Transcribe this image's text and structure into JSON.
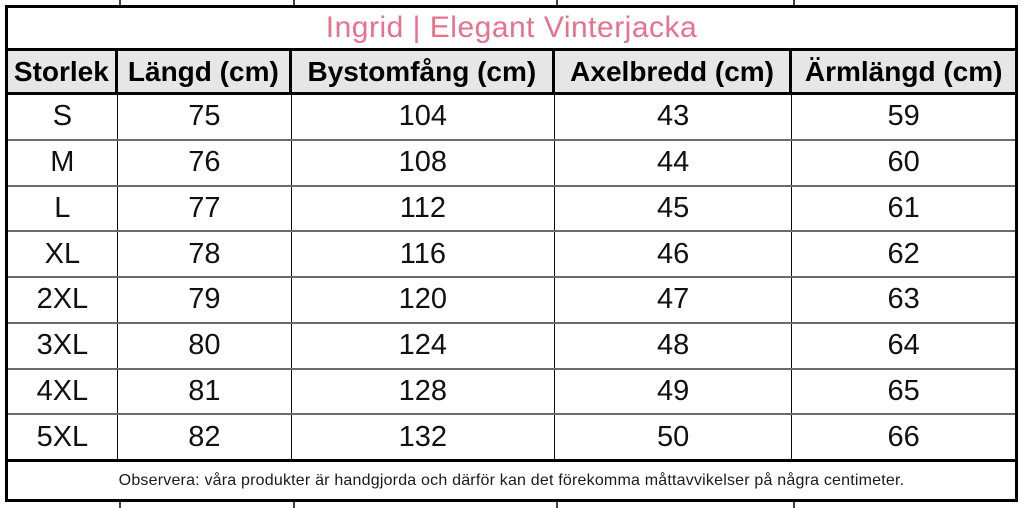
{
  "chart_data": {
    "type": "table",
    "title": "Ingrid | Elegant Vinterjacka",
    "columns": [
      "Storlek",
      "Längd (cm)",
      "Bystomfång (cm)",
      "Axelbredd (cm)",
      "Ärmlängd (cm)"
    ],
    "rows": [
      [
        "S",
        "75",
        "104",
        "43",
        "59"
      ],
      [
        "M",
        "76",
        "108",
        "44",
        "60"
      ],
      [
        "L",
        "77",
        "112",
        "45",
        "61"
      ],
      [
        "XL",
        "78",
        "116",
        "46",
        "62"
      ],
      [
        "2XL",
        "79",
        "120",
        "47",
        "63"
      ],
      [
        "3XL",
        "80",
        "124",
        "48",
        "64"
      ],
      [
        "4XL",
        "81",
        "128",
        "49",
        "65"
      ],
      [
        "5XL",
        "82",
        "132",
        "50",
        "66"
      ]
    ],
    "note": "Observera: våra produkter är handgjorda och därför kan det förekomma måttavvikelser på några centimeter.",
    "layout": {
      "header_style": "bold on light gray",
      "grid": "black outer and header borders, gray row dividers",
      "title_position": "merged top row, centered"
    }
  },
  "colors": {
    "title_text": "#e8718c",
    "header_background": "#e7e6e6",
    "table_border": "#000000",
    "row_divider": "#6b6b6b"
  }
}
